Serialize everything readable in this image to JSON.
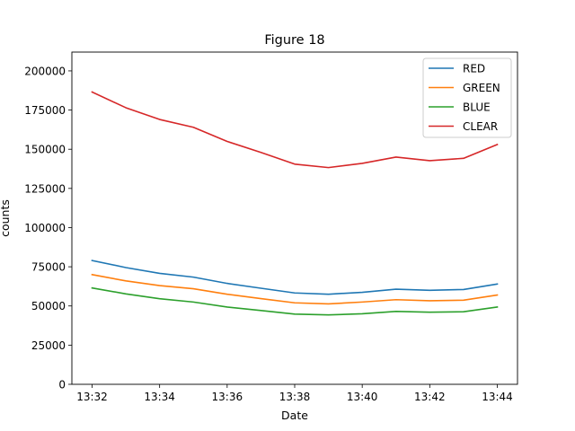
{
  "chart_data": {
    "type": "line",
    "title": "Figure 18",
    "xlabel": "Date",
    "ylabel": "counts",
    "x": [
      "13:32",
      "13:33",
      "13:34",
      "13:35",
      "13:36",
      "13:37",
      "13:38",
      "13:39",
      "13:40",
      "13:41",
      "13:42",
      "13:43",
      "13:44"
    ],
    "x_tick_labels": [
      "13:32",
      "13:34",
      "13:36",
      "13:38",
      "13:40",
      "13:42",
      "13:44"
    ],
    "ylim": [
      0,
      212000
    ],
    "y_ticks": [
      0,
      25000,
      50000,
      75000,
      100000,
      125000,
      150000,
      175000,
      200000
    ],
    "y_tick_labels": [
      "0",
      "25000",
      "50000",
      "75000",
      "100000",
      "125000",
      "150000",
      "175000",
      "200000"
    ],
    "grid": false,
    "legend_position": "top-right",
    "series": [
      {
        "name": "RED",
        "color": "#1f77b4",
        "values": [
          79000,
          74500,
          70800,
          68400,
          64400,
          61300,
          58300,
          57500,
          58700,
          60700,
          60000,
          60500,
          64000
        ]
      },
      {
        "name": "GREEN",
        "color": "#ff7f0e",
        "values": [
          70000,
          66000,
          63000,
          61000,
          57500,
          54700,
          52000,
          51300,
          52500,
          54000,
          53300,
          53700,
          57000
        ]
      },
      {
        "name": "BLUE",
        "color": "#2ca02c",
        "values": [
          61500,
          57700,
          54600,
          52500,
          49300,
          47100,
          44800,
          44300,
          45000,
          46500,
          46000,
          46300,
          49300
        ]
      },
      {
        "name": "CLEAR",
        "color": "#d62728",
        "values": [
          186500,
          176500,
          169000,
          164000,
          155000,
          148000,
          140500,
          138300,
          141000,
          145000,
          142700,
          144200,
          153000
        ]
      }
    ]
  }
}
